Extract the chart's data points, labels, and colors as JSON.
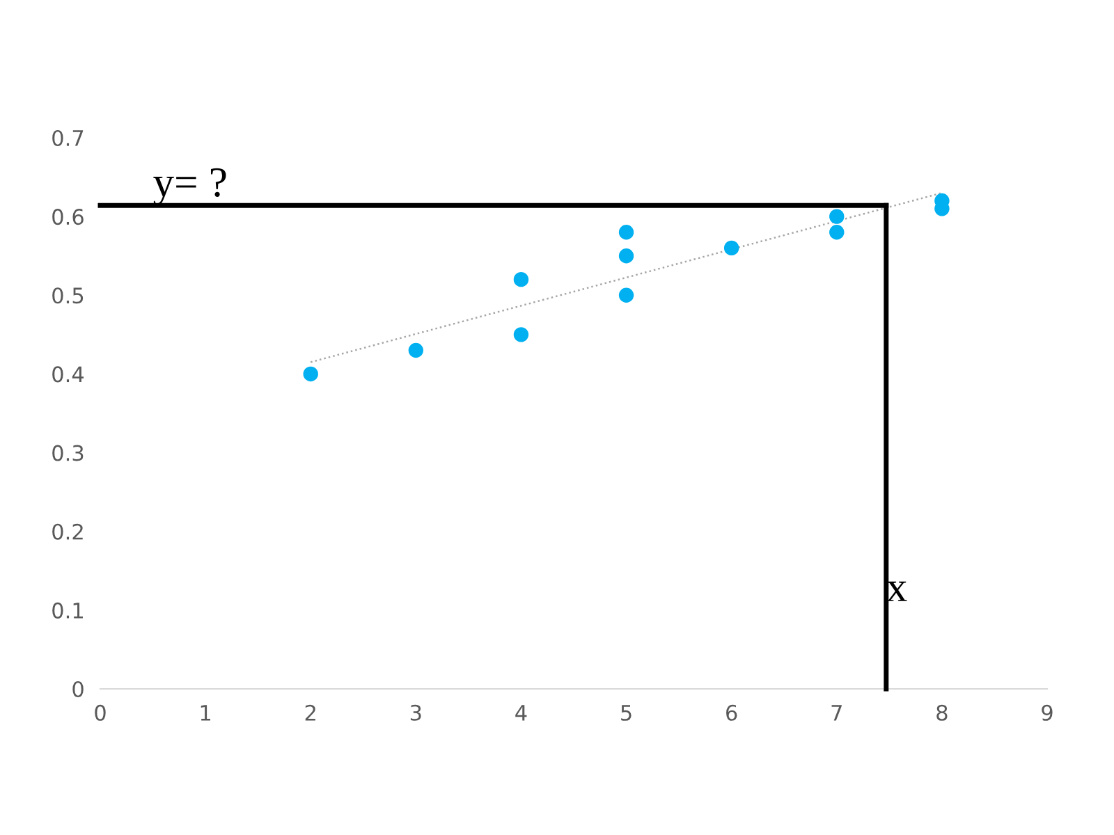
{
  "chart_data": {
    "type": "scatter",
    "x": [
      2,
      3,
      4,
      4,
      5,
      5,
      5,
      6,
      7,
      7,
      8,
      8
    ],
    "series": [
      {
        "color": "#00b0f0",
        "marker": "circle",
        "values": [
          0.4,
          0.43,
          0.52,
          0.45,
          0.58,
          0.55,
          0.5,
          0.56,
          0.6,
          0.58,
          0.62,
          0.61
        ]
      },
      {
        "type": "line",
        "color": "#a6a6a6",
        "x": [
          2,
          8
        ],
        "values": [
          0.415,
          0.63
        ],
        "line_style": "dotted"
      }
    ],
    "xlim": [
      0,
      9
    ],
    "xticks": [
      0,
      1,
      2,
      3,
      4,
      5,
      6,
      7,
      8,
      9
    ],
    "ylim": [
      0,
      0.7
    ],
    "yticks": [
      0,
      0.1,
      0.2,
      0.3,
      0.4,
      0.5,
      0.6,
      0.7
    ],
    "ref_lines": [
      {
        "axis": "y",
        "value": 0.614,
        "color": "#000000"
      },
      {
        "axis": "x",
        "value": 7.47,
        "color": "#000000"
      }
    ],
    "annotations": [
      {
        "text": "y= ?",
        "x": 0.5,
        "y": 0.614
      },
      {
        "text": "x",
        "x": 7.47,
        "y": 0.1
      }
    ],
    "grid": false,
    "legend": false
  }
}
